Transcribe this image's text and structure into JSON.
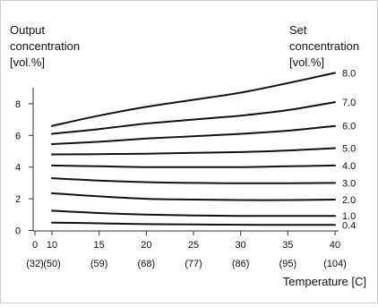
{
  "chart_data": {
    "type": "line",
    "y_title_lines": [
      "Output",
      "concentration",
      "[vol.%]"
    ],
    "right_title_lines": [
      "Set",
      "concentration",
      "[vol.%]"
    ],
    "xlabel": "Temperature [C]",
    "xlim": [
      0,
      40
    ],
    "ylim": [
      0,
      10
    ],
    "x_ticks": [
      {
        "value": 0,
        "label": "0",
        "sub": "(32)"
      },
      {
        "value": 10,
        "label": "10",
        "sub": "(50)"
      },
      {
        "value": 15,
        "label": "15",
        "sub": "(59)"
      },
      {
        "value": 20,
        "label": "20",
        "sub": "(68)"
      },
      {
        "value": 25,
        "label": "25",
        "sub": "(77)"
      },
      {
        "value": 30,
        "label": "30",
        "sub": "(86)"
      },
      {
        "value": 35,
        "label": "35",
        "sub": "(95)"
      },
      {
        "value": 40,
        "label": "40",
        "sub": "(104)"
      }
    ],
    "y_ticks": [
      0,
      2,
      4,
      6,
      8
    ],
    "x": [
      10,
      15,
      20,
      25,
      30,
      35,
      40
    ],
    "series": [
      {
        "name": "0.4",
        "values": [
          0.5,
          0.45,
          0.4,
          0.38,
          0.36,
          0.35,
          0.35
        ]
      },
      {
        "name": "1.0",
        "values": [
          1.25,
          1.1,
          1.0,
          0.95,
          0.92,
          0.92,
          0.92
        ]
      },
      {
        "name": "2.0",
        "values": [
          2.35,
          2.15,
          2.0,
          1.95,
          1.92,
          1.92,
          1.95
        ]
      },
      {
        "name": "3.0",
        "values": [
          3.3,
          3.15,
          3.05,
          3.0,
          2.98,
          2.98,
          3.0
        ]
      },
      {
        "name": "4.0",
        "values": [
          4.1,
          4.05,
          4.0,
          4.0,
          4.0,
          4.05,
          4.1
        ]
      },
      {
        "name": "5.0",
        "values": [
          4.8,
          4.82,
          4.85,
          4.9,
          4.95,
          5.05,
          5.2
        ]
      },
      {
        "name": "6.0",
        "values": [
          5.45,
          5.6,
          5.8,
          5.95,
          6.1,
          6.3,
          6.6
        ]
      },
      {
        "name": "7.0",
        "values": [
          6.1,
          6.4,
          6.75,
          7.0,
          7.25,
          7.6,
          8.1
        ]
      },
      {
        "name": "8.0",
        "values": [
          6.6,
          7.25,
          7.8,
          8.25,
          8.7,
          9.3,
          9.95
        ]
      }
    ],
    "line_color": "#111111",
    "axis_color": "#333333",
    "grid": false
  }
}
